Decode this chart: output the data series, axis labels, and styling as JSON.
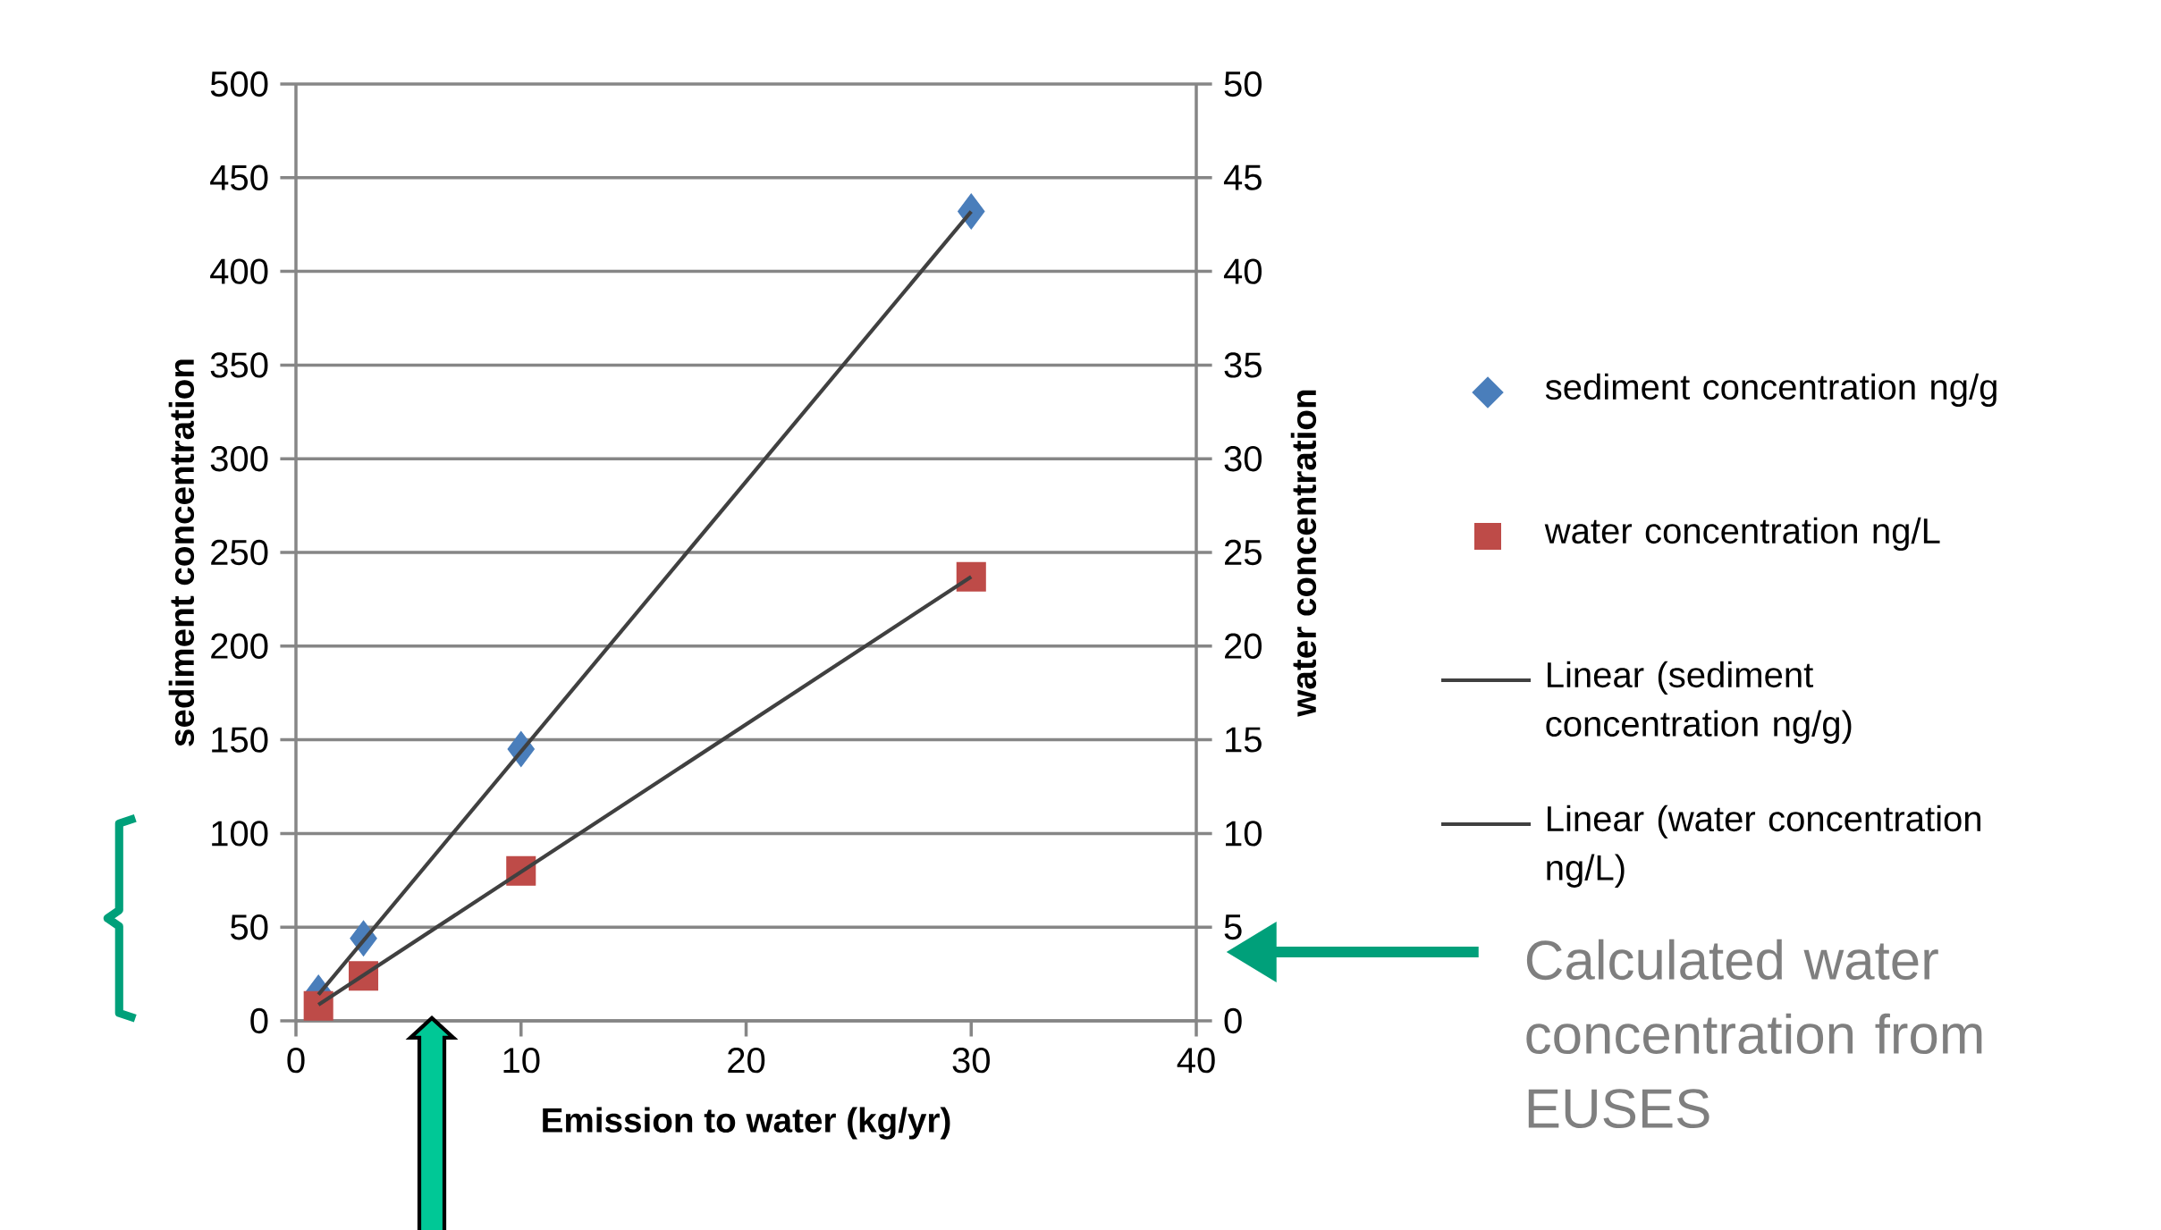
{
  "chart_data": {
    "type": "scatter",
    "xlabel": "Emission to water (kg/yr)",
    "ylabel": "sediment concentration",
    "y2label": "water concentration",
    "xlim": [
      0,
      40
    ],
    "xticks": [
      0,
      10,
      20,
      30,
      40
    ],
    "ylim": [
      0,
      500
    ],
    "yticks": [
      0,
      50,
      100,
      150,
      200,
      250,
      300,
      350,
      400,
      450,
      500
    ],
    "y2lim": [
      0,
      50
    ],
    "y2ticks": [
      0,
      5,
      10,
      15,
      20,
      25,
      30,
      35,
      40,
      45,
      50
    ],
    "grid": "y",
    "legend": "right",
    "annotations": [
      "Calculated water concentration from EUSES"
    ],
    "series": [
      {
        "name": "sediment concentration ng/g",
        "marker": "diamond",
        "color": "#4a7ebb",
        "x": [
          1,
          3,
          10,
          30
        ],
        "values": [
          15,
          44,
          145,
          432
        ]
      },
      {
        "name": "water concentration ng/L",
        "marker": "square",
        "axis": "y2",
        "color": "#be4b48",
        "x": [
          1,
          3,
          10,
          30
        ],
        "values": [
          0.8,
          2.4,
          8.0,
          23.7
        ]
      },
      {
        "name": "Linear (sediment concentration ng/g)",
        "type": "line",
        "color": "#404040",
        "x": [
          1,
          30
        ],
        "values": [
          14,
          432
        ]
      },
      {
        "name": "Linear (water concentration ng/L)",
        "type": "line",
        "axis": "y2",
        "color": "#404040",
        "x": [
          1,
          30
        ],
        "values": [
          0.86,
          23.7
        ]
      }
    ]
  }
}
